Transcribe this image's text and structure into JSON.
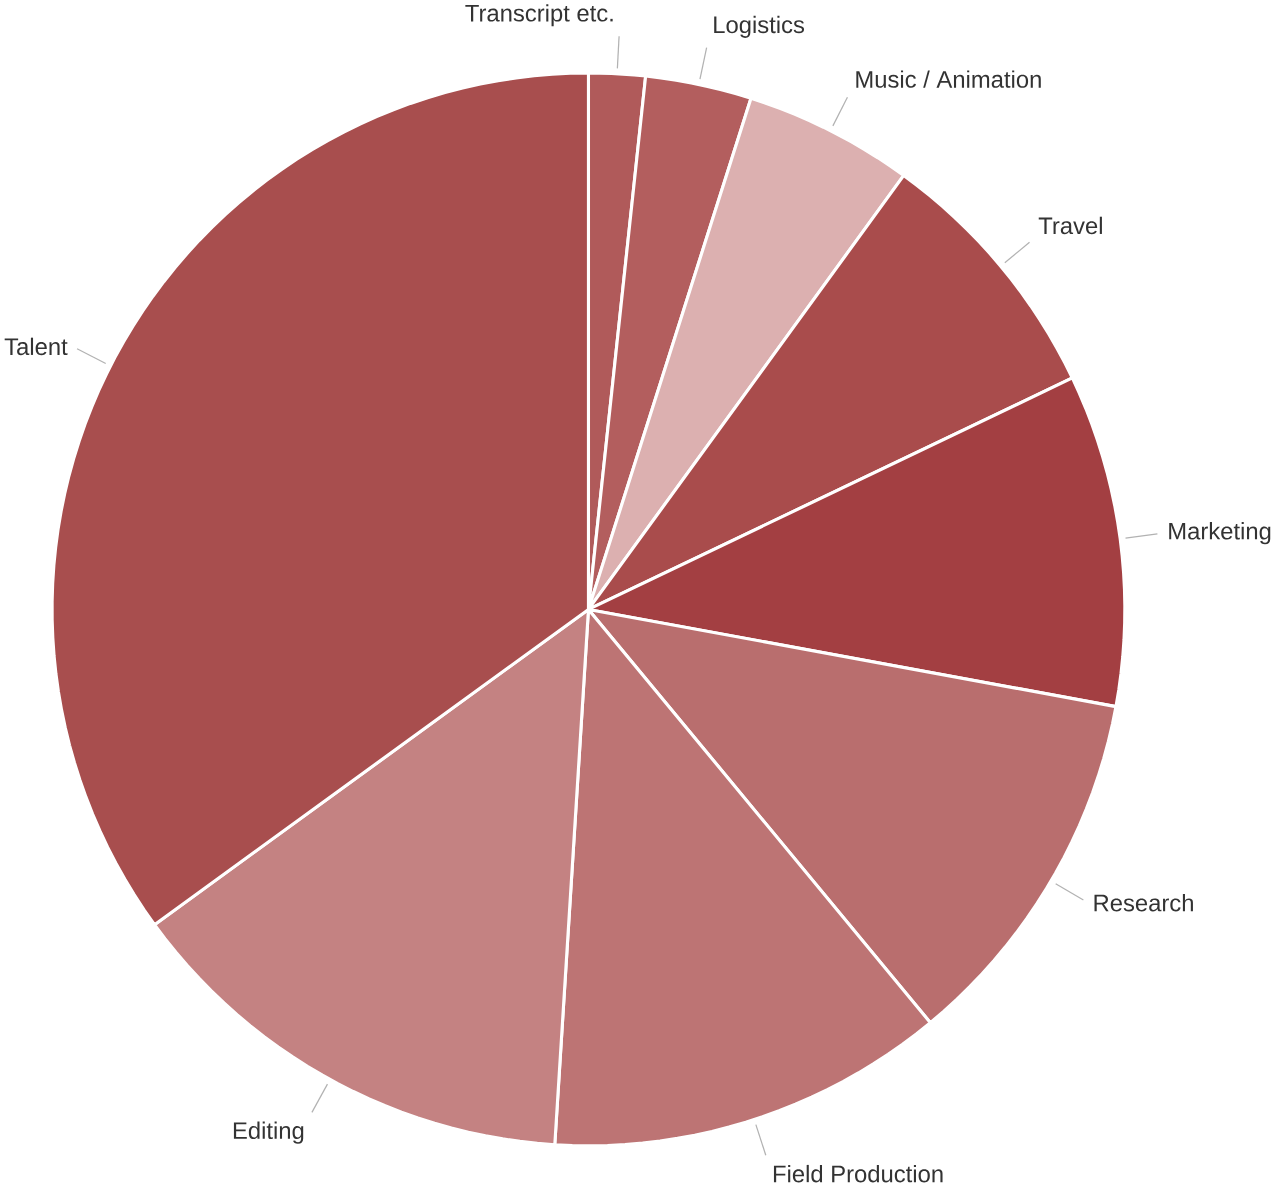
{
  "chart_data": {
    "type": "pie",
    "categories": [
      "Transcript etc.",
      "Logistics",
      "Music / Animation",
      "Travel",
      "Marketing",
      "Research",
      "Field Production",
      "Editing",
      "Talent"
    ],
    "values": [
      1.7,
      3.2,
      5.1,
      7.9,
      10.0,
      11.1,
      12.0,
      14.0,
      35.0
    ],
    "colors": [
      "#b05a5a",
      "#b35e5e",
      "#dcb0b0",
      "#a94c4c",
      "#a33f42",
      "#b96e6e",
      "#bd7474",
      "#c48282",
      "#a84e4e"
    ]
  }
}
